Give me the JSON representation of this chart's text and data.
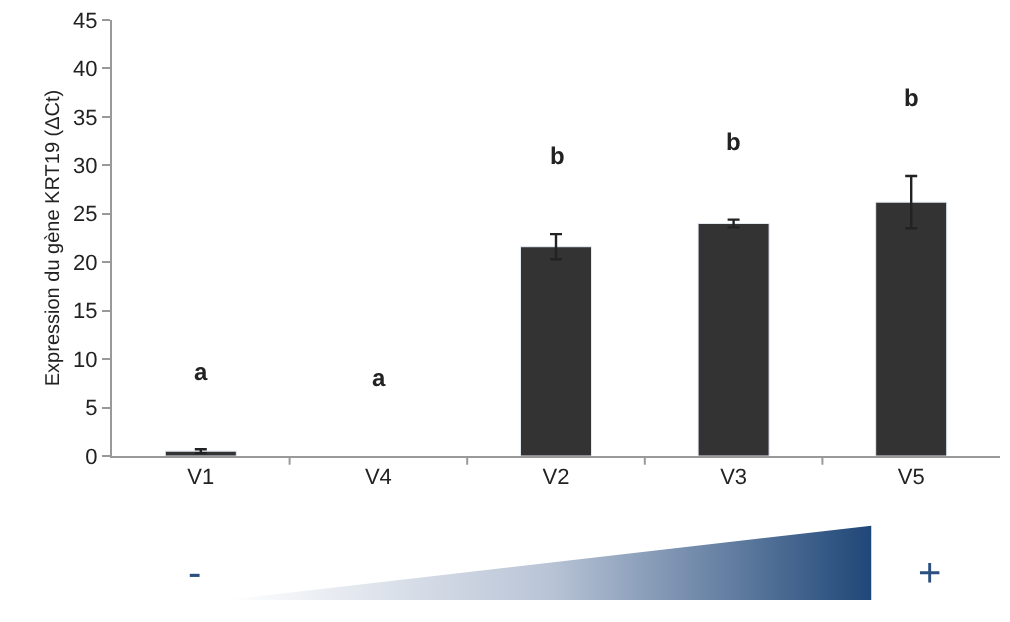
{
  "chart_data": {
    "type": "bar",
    "ylabel": "Expression du gène KRT19 (ΔCt)",
    "categories": [
      "V1",
      "V4",
      "V2",
      "V3",
      "V5"
    ],
    "values": [
      0.5,
      null,
      21.6,
      24.0,
      26.2
    ],
    "errors": [
      0.2,
      null,
      1.3,
      0.4,
      2.7
    ],
    "color": "#333333",
    "ylim": [
      0,
      45
    ],
    "yticks": [
      0,
      5,
      10,
      15,
      20,
      25,
      30,
      35,
      40,
      45
    ],
    "annotations": [
      "a",
      "a",
      "b",
      "b",
      "b",
      "-",
      "+"
    ]
  }
}
